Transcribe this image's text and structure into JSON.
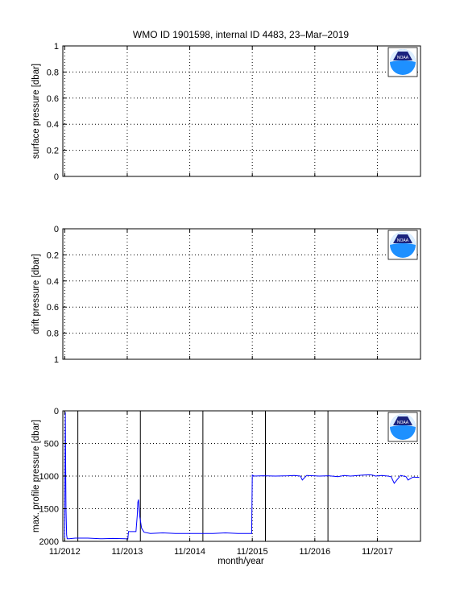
{
  "figure": {
    "title": "WMO ID 1901598, internal ID 4483, 23–Mar–2019",
    "logo_text": "NOAA",
    "xlabel": "month/year",
    "colors": {
      "line": "#0000ff",
      "vline": "#000000",
      "grid": "#000000",
      "logo_blue": "#1e90ff",
      "logo_navy": "#1a237e"
    }
  },
  "chart_data": [
    {
      "type": "line",
      "ylabel": "surface pressure [dbar]",
      "ylim": [
        0,
        1
      ],
      "y_reversed": false,
      "y_ticks": [
        "0",
        "0.2",
        "0.4",
        "0.6",
        "0.8",
        "1"
      ],
      "x_ticks": [],
      "grid": true,
      "series": []
    },
    {
      "type": "line",
      "ylabel": "drift pressure [dbar]",
      "ylim": [
        0,
        1
      ],
      "y_reversed": true,
      "y_ticks": [
        "0",
        "0.2",
        "0.4",
        "0.6",
        "0.8",
        "1"
      ],
      "x_ticks": [],
      "grid": true,
      "series": []
    },
    {
      "type": "line",
      "ylabel": "max. profile pressure [dbar]",
      "ylim": [
        0,
        2000
      ],
      "y_reversed": true,
      "y_ticks": [
        "0",
        "500",
        "1000",
        "1500",
        "2000"
      ],
      "x_ticks": [
        "11/2012",
        "11/2013",
        "11/2014",
        "11/2015",
        "11/2016",
        "11/2017"
      ],
      "grid": true,
      "vertical_lines_x": [
        2013.04,
        2014.04,
        2015.04,
        2016.04,
        2017.04
      ],
      "series": [
        {
          "x": [
            2012.83,
            2012.84,
            2012.85,
            2012.86,
            2012.87,
            2012.9,
            2013.0,
            2013.2,
            2013.4,
            2013.6,
            2013.8,
            2013.84,
            2013.85,
            2013.9,
            2013.95,
            2013.97,
            2013.99,
            2014.0,
            2014.01,
            2014.03,
            2014.06,
            2014.1,
            2014.2,
            2014.4,
            2014.6,
            2014.8,
            2015.0,
            2015.2,
            2015.4,
            2015.6,
            2015.82,
            2015.83,
            2015.86,
            2016.0,
            2016.2,
            2016.4,
            2016.5,
            2016.6,
            2016.63,
            2016.7,
            2016.9,
            2017.05,
            2017.2,
            2017.3,
            2017.4,
            2017.6,
            2017.7,
            2017.75,
            2017.8,
            2017.9,
            2018.0,
            2018.05,
            2018.1,
            2018.2,
            2018.29,
            2018.32,
            2018.4,
            2018.5
          ],
          "y": [
            1950,
            20,
            1500,
            1900,
            1960,
            1960,
            1950,
            1950,
            1960,
            1955,
            1960,
            1965,
            1850,
            1850,
            1850,
            1850,
            1600,
            1400,
            1360,
            1620,
            1800,
            1860,
            1880,
            1870,
            1880,
            1880,
            1880,
            1880,
            1870,
            1880,
            1880,
            985,
            1000,
            995,
            1000,
            995,
            990,
            1000,
            1060,
            990,
            1000,
            995,
            1010,
            990,
            1000,
            985,
            980,
            985,
            1000,
            990,
            1000,
            1010,
            1110,
            990,
            1010,
            1060,
            1015,
            1020
          ]
        }
      ]
    }
  ]
}
